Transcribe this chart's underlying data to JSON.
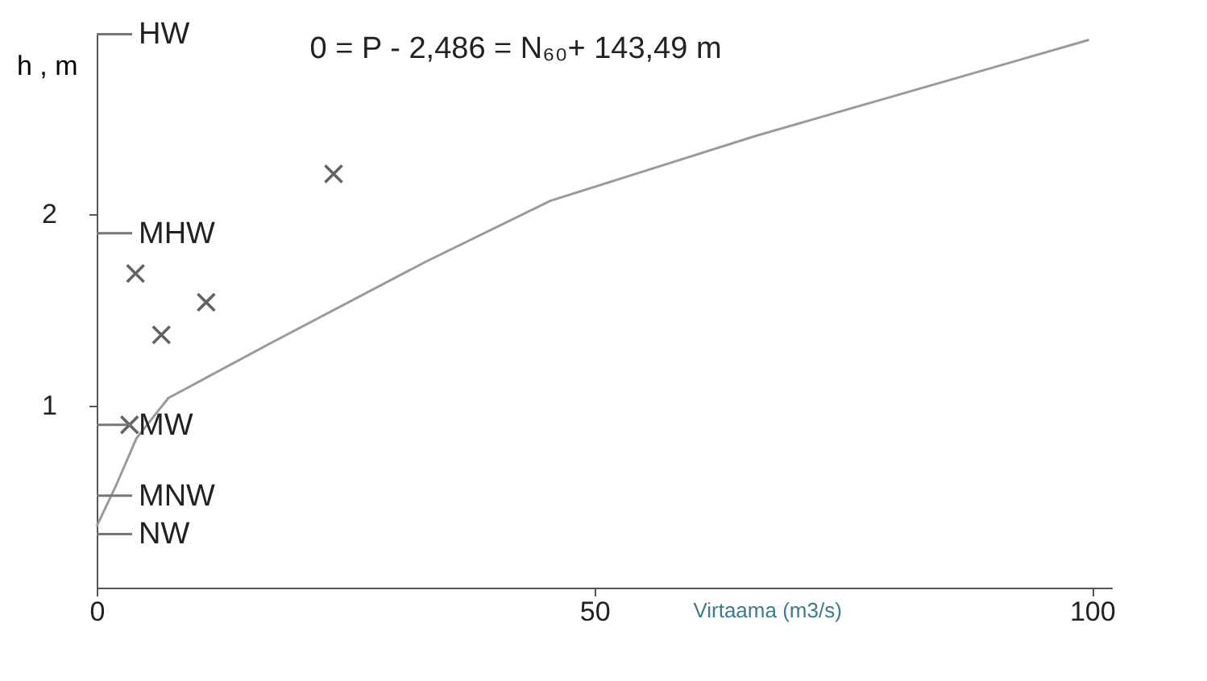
{
  "chart_data": {
    "type": "line",
    "xlabel": "Virtaama (m3/s)",
    "ylabel": "h , m",
    "xlim": [
      0,
      102
    ],
    "ylim": [
      0.05,
      2.95
    ],
    "xticks": [
      0,
      50,
      100
    ],
    "yticks": [
      1,
      2
    ],
    "grid": false,
    "series": [
      {
        "type": "line",
        "color": "#9a9a9a",
        "marker": "none",
        "line_style": "solid",
        "x": [
          0,
          2,
          4,
          7.2,
          17.6,
          33,
          45.6,
          66.3,
          99.7
        ],
        "values": [
          0.37,
          0.59,
          0.83,
          1.04,
          1.33,
          1.75,
          2.07,
          2.41,
          2.91
        ]
      },
      {
        "type": "scatter",
        "color": "#222222",
        "marker": "cross",
        "x": [
          3.3,
          3.9,
          6.5,
          11,
          23.8
        ],
        "values": [
          0.9,
          1.69,
          1.37,
          1.54,
          2.21
        ]
      }
    ],
    "ref_lines": [
      {
        "axis": "y",
        "value": 2.94,
        "label": "HW",
        "color": "#777777"
      },
      {
        "axis": "y",
        "value": 1.9,
        "label": "MHW",
        "color": "#777777"
      },
      {
        "axis": "y",
        "value": 0.9,
        "label": "MW",
        "color": "#777777"
      },
      {
        "axis": "y",
        "value": 0.53,
        "label": "MNW",
        "color": "#777777"
      },
      {
        "axis": "y",
        "value": 0.33,
        "label": "NW",
        "color": "#777777"
      }
    ],
    "annotations": [
      "0 = P - 2,486 = N₆₀+ 143,49 m"
    ]
  }
}
